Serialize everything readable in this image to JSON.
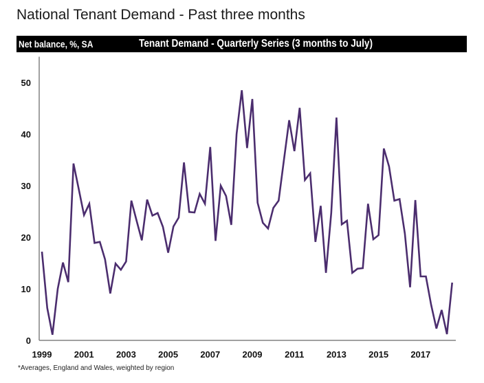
{
  "page": {
    "title": "National Tenant Demand - Past three months"
  },
  "header": {
    "left_label": "Net balance, %, SA",
    "center_title": "Tenant Demand - Quarterly Series (3 months to July)"
  },
  "footnote": "*Averages,  England and Wales, weighted by region",
  "colors": {
    "line": "#4b2d6e",
    "axis": "#808080",
    "header_bg": "#000000"
  },
  "chart_data": {
    "type": "line",
    "title": "Tenant Demand - Quarterly Series (3 months to July)",
    "xlabel": "",
    "ylabel": "Net balance, %, SA",
    "ylim": [
      0,
      55
    ],
    "yticks": [
      0,
      10,
      20,
      30,
      40,
      50
    ],
    "xticks": [
      "1999",
      "2001",
      "2003",
      "2005",
      "2007",
      "2009",
      "2011",
      "2013",
      "2015",
      "2017"
    ],
    "x_start": "1999 Q1",
    "x_frequency": "quarterly",
    "grid": false,
    "legend": "none",
    "series": [
      {
        "name": "Tenant Demand",
        "values": [
          17.2,
          6.3,
          1.1,
          10,
          15.1,
          11.3,
          34.3,
          29.3,
          24.3,
          26.5,
          18.9,
          19.1,
          15.7,
          9.1,
          14.9,
          13.7,
          15.3,
          27.1,
          23.2,
          19.4,
          27.3,
          24.2,
          24.7,
          22,
          17,
          22.1,
          23.8,
          34.5,
          24.9,
          24.8,
          28.4,
          26.5,
          37.5,
          19.3,
          30,
          28,
          22.4,
          40,
          48.5,
          37.3,
          46.8,
          26.7,
          22.8,
          21.7,
          25.7,
          27.1,
          34.9,
          42.7,
          36.7,
          45.1,
          31.1,
          32.4,
          19.1,
          26.1,
          13.1,
          24.7,
          43.2,
          22.5,
          23.2,
          13.1,
          13.9,
          14,
          26.5,
          19.6,
          20.4,
          37.2,
          33.7,
          27.1,
          27.4,
          20.7,
          10.3,
          27.2,
          12.4,
          12.4,
          6.9,
          2.3,
          5.9,
          1.2,
          11.2
        ]
      }
    ]
  }
}
